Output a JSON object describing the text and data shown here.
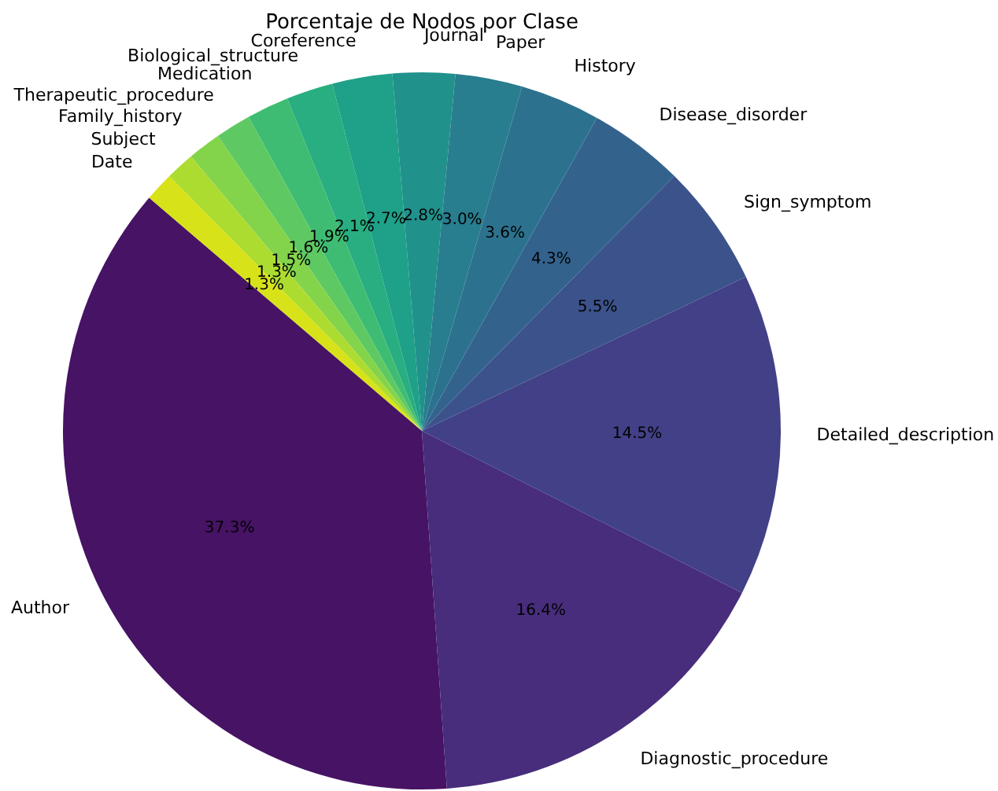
{
  "chart_data": {
    "type": "pie",
    "title": "Porcentaje de Nodos por Clase",
    "categories": [
      "Author",
      "Diagnostic_procedure",
      "Detailed_description",
      "Sign_symptom",
      "Disease_disorder",
      "History",
      "Paper",
      "Journal",
      "Coreference",
      "Biological_structure",
      "Medication",
      "Therapeutic_procedure",
      "Family_history",
      "Subject",
      "Date"
    ],
    "values": [
      37.3,
      16.4,
      14.5,
      5.5,
      4.3,
      3.6,
      3.0,
      2.8,
      2.7,
      2.1,
      1.9,
      1.6,
      1.5,
      1.3,
      1.3
    ],
    "colors": [
      "#471365",
      "#472d7b",
      "#424086",
      "#3b528b",
      "#33638d",
      "#2c728e",
      "#287d8e",
      "#21918c",
      "#1fa088",
      "#28ae80",
      "#3fbc73",
      "#5ec962",
      "#84d44b",
      "#addc30",
      "#d8e219"
    ],
    "value_labels": [
      "37.3%",
      "16.4%",
      "14.5%",
      "5.5%",
      "4.3%",
      "3.6%",
      "3.0%",
      "2.8%",
      "2.7%",
      "2.1%",
      "1.9%",
      "1.6%",
      "1.5%",
      "1.3%",
      "1.3%"
    ]
  }
}
